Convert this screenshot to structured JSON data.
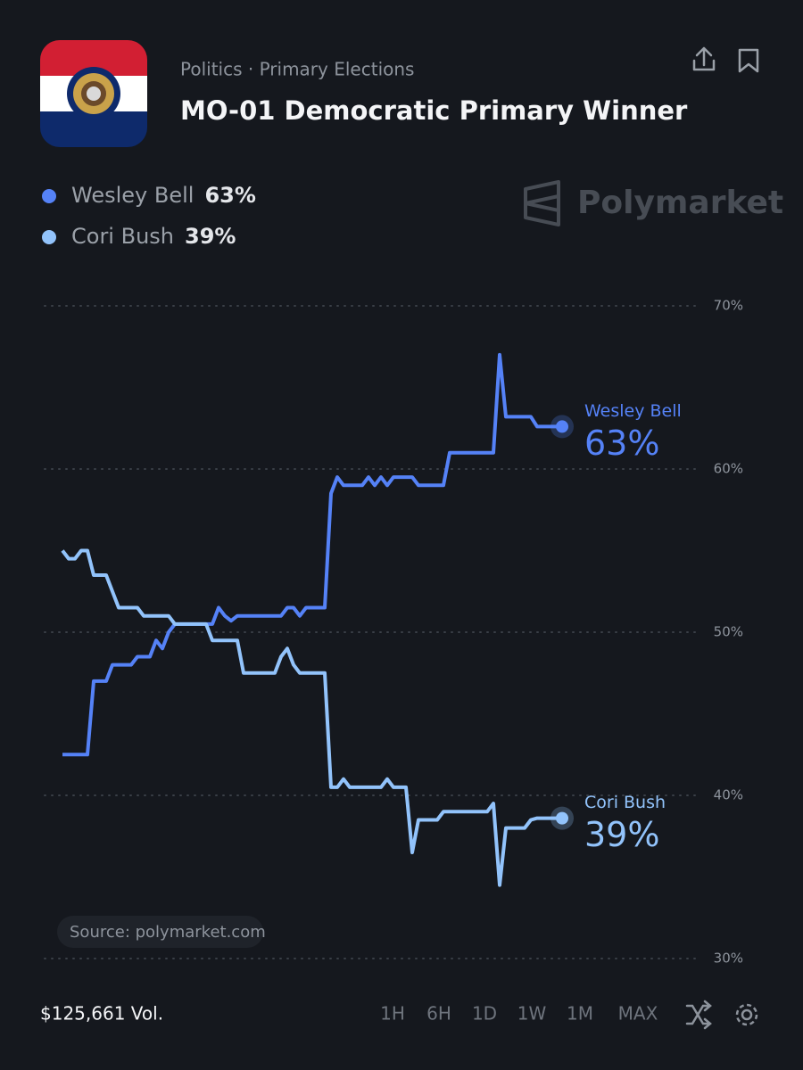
{
  "header": {
    "category": "Politics · Primary Elections",
    "title": "MO-01 Democratic Primary Winner",
    "brand": "Polymarket"
  },
  "chart_data": {
    "type": "line",
    "series": [
      {
        "name": "Wesley Bell",
        "color": "#5582f7",
        "value_label": "63%",
        "values": [
          42.5,
          42.5,
          42.5,
          42.5,
          42.5,
          47,
          47,
          47,
          48,
          48,
          48,
          48,
          48.5,
          48.5,
          48.5,
          49.5,
          49,
          50,
          50.5,
          50.5,
          50.5,
          50.5,
          50.5,
          50.5,
          50.5,
          51.5,
          51,
          50.7,
          51,
          51,
          51,
          51,
          51,
          51,
          51,
          51,
          51.5,
          51.5,
          51,
          51.5,
          51.5,
          51.5,
          51.5,
          58.5,
          59.5,
          59,
          59,
          59,
          59,
          59.5,
          59,
          59.5,
          59,
          59.5,
          59.5,
          59.5,
          59.5,
          59,
          59,
          59,
          59,
          59,
          61,
          61,
          61,
          61,
          61,
          61,
          61,
          61,
          67,
          63.2,
          63.2,
          63.2,
          63.2,
          63.2,
          62.6,
          62.6,
          62.6,
          62.6,
          62.6
        ]
      },
      {
        "name": "Cori Bush",
        "color": "#92c3fb",
        "value_label": "39%",
        "values": [
          55,
          54.5,
          54.5,
          55,
          55,
          53.5,
          53.5,
          53.5,
          52.5,
          51.5,
          51.5,
          51.5,
          51.5,
          51,
          51,
          51,
          51,
          51,
          50.5,
          50.5,
          50.5,
          50.5,
          50.5,
          50.5,
          49.5,
          49.5,
          49.5,
          49.5,
          49.5,
          47.5,
          47.5,
          47.5,
          47.5,
          47.5,
          47.5,
          48.5,
          49,
          48,
          47.5,
          47.5,
          47.5,
          47.5,
          47.5,
          40.5,
          40.5,
          41,
          40.5,
          40.5,
          40.5,
          40.5,
          40.5,
          40.5,
          41,
          40.5,
          40.5,
          40.5,
          36.5,
          38.5,
          38.5,
          38.5,
          38.5,
          39,
          39,
          39,
          39,
          39,
          39,
          39,
          39,
          39.5,
          34.5,
          38,
          38,
          38,
          38,
          38.5,
          38.6,
          38.6,
          38.6,
          38.6,
          38.6
        ]
      }
    ],
    "ylim": [
      30,
      70
    ],
    "yticks": [
      {
        "value": 30,
        "label": "30%"
      },
      {
        "value": 40,
        "label": "40%"
      },
      {
        "value": 50,
        "label": "50%"
      },
      {
        "value": 60,
        "label": "60%"
      },
      {
        "value": 70,
        "label": "70%"
      }
    ],
    "grid": true,
    "source": "Source: polymarket.com"
  },
  "footer": {
    "volume": "$125,661 Vol.",
    "ranges": [
      "1H",
      "6H",
      "1D",
      "1W",
      "1M",
      "MAX"
    ]
  }
}
